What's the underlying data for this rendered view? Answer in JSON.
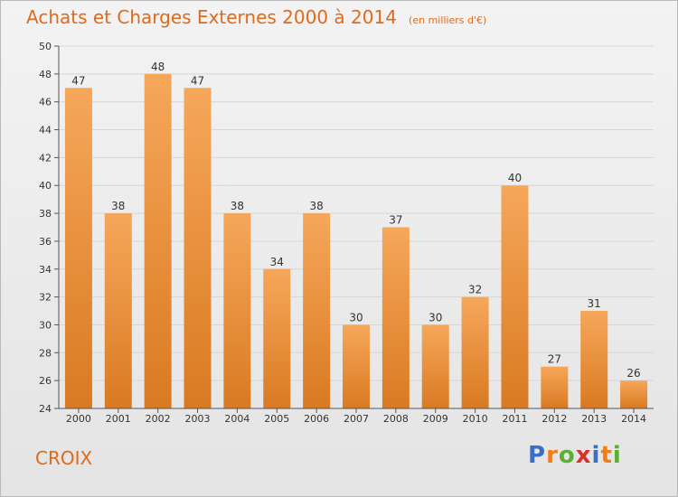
{
  "header": {
    "title": "Achats et Charges Externes 2000 à 2014",
    "unit": "(en milliers d'€)"
  },
  "footer": {
    "commune": "CROIX",
    "brand": "Proxiti"
  },
  "colors": {
    "accent": "#e06a1b",
    "bar_light": "#f6a75a",
    "bar_dark": "#d97a22",
    "grid": "#d6d6d6",
    "axis": "#555555",
    "brand_letters": [
      "#3b6fc4",
      "#ef7d1a",
      "#5ab031",
      "#d8302b",
      "#3b6fc4",
      "#ef7d1a",
      "#5ab031"
    ]
  },
  "chart_data": {
    "type": "bar",
    "categories": [
      "2000",
      "2001",
      "2002",
      "2003",
      "2004",
      "2005",
      "2006",
      "2007",
      "2008",
      "2009",
      "2010",
      "2011",
      "2012",
      "2013",
      "2014"
    ],
    "values": [
      47,
      38,
      48,
      47,
      38,
      34,
      38,
      30,
      37,
      30,
      32,
      40,
      27,
      31,
      26
    ],
    "title": "Achats et Charges Externes 2000 à 2014",
    "ylim": [
      24,
      50
    ],
    "yticks": [
      24,
      26,
      28,
      30,
      32,
      34,
      36,
      38,
      40,
      42,
      44,
      46,
      48,
      50
    ],
    "grid": true,
    "data_labels": true
  }
}
